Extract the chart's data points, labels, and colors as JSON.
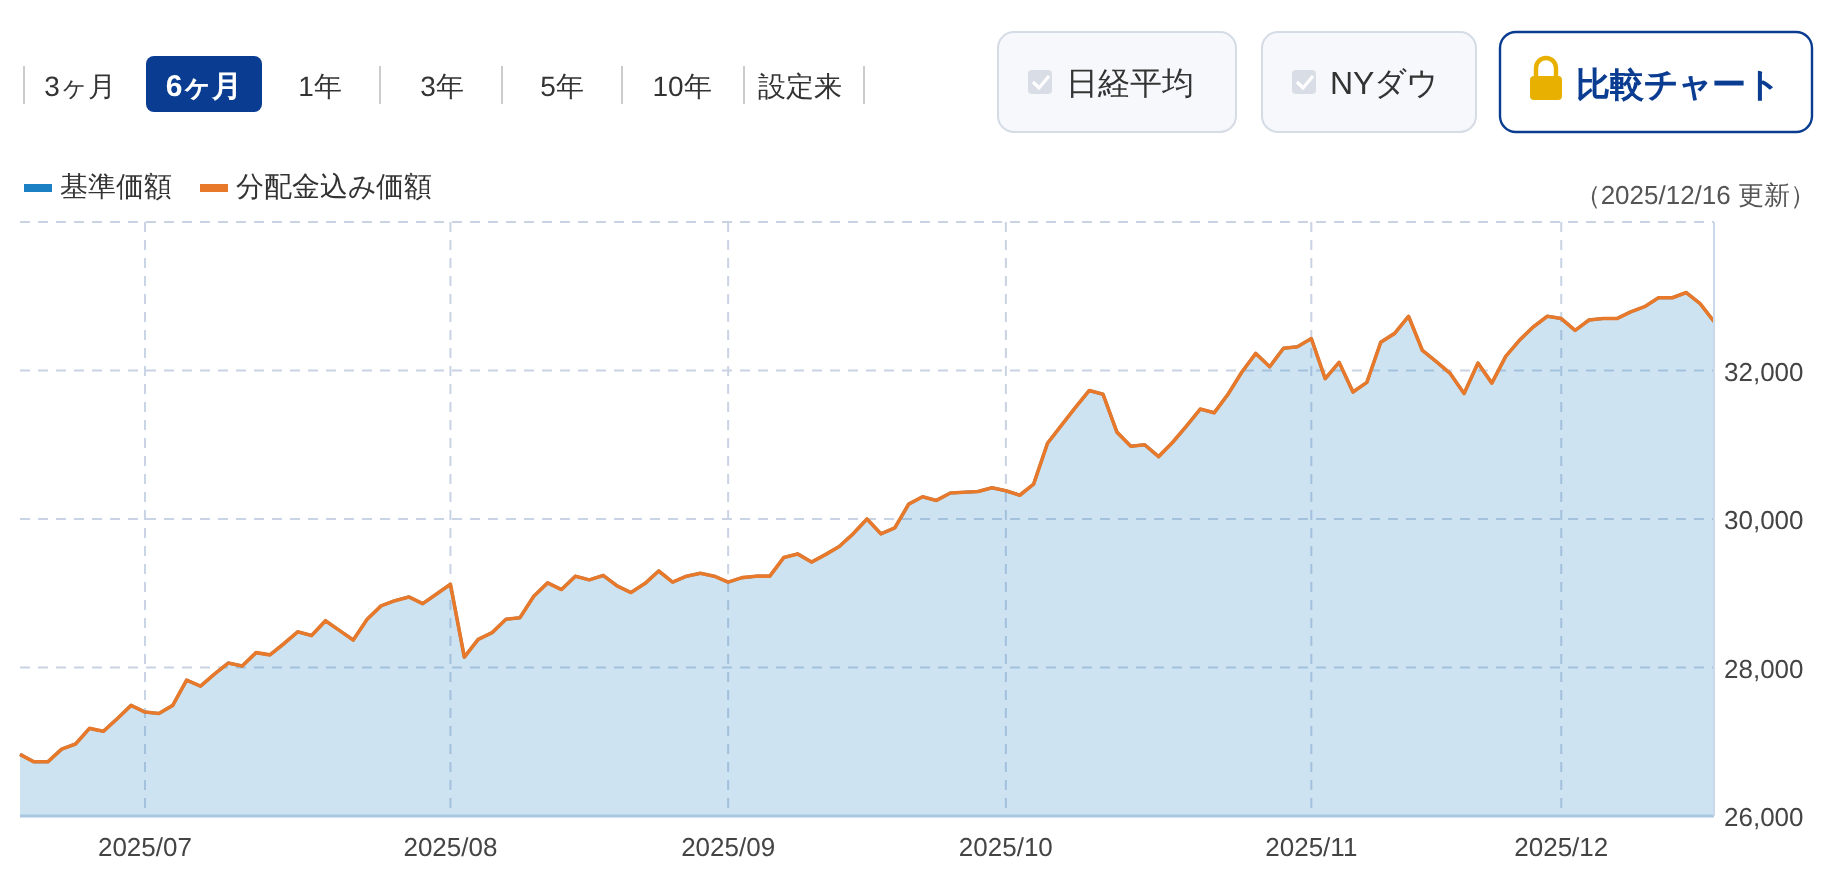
{
  "chart_data": {
    "type": "area",
    "categories": [
      null,
      null,
      null,
      null,
      null,
      null,
      null,
      null,
      null,
      "2025/07",
      null,
      null,
      null,
      null,
      null,
      null,
      null,
      null,
      null,
      null,
      null,
      null,
      null,
      null,
      null,
      null,
      null,
      null,
      null,
      null,
      null,
      "2025/08",
      null,
      null,
      null,
      null,
      null,
      null,
      null,
      null,
      null,
      null,
      null,
      null,
      null,
      null,
      null,
      null,
      null,
      null,
      null,
      "2025/09",
      null,
      null,
      null,
      null,
      null,
      null,
      null,
      null,
      null,
      null,
      null,
      null,
      null,
      null,
      null,
      null,
      null,
      null,
      null,
      "2025/10",
      null,
      null,
      null,
      null,
      null,
      null,
      null,
      null,
      null,
      null,
      null,
      null,
      null,
      null,
      null,
      null,
      null,
      null,
      null,
      null,
      null,
      "2025/11",
      null,
      null,
      null,
      null,
      null,
      null,
      null,
      null,
      null,
      null,
      null,
      null,
      null,
      null,
      null,
      null,
      null,
      "2025/12",
      null,
      null,
      null,
      null,
      null,
      null,
      null,
      null,
      null,
      null,
      null
    ],
    "series": [
      {
        "name": "基準価額",
        "color": "#1b80c4",
        "values": [
          26830,
          26730,
          26730,
          26900,
          26970,
          27180,
          27140,
          27310,
          27490,
          27400,
          27380,
          27490,
          27830,
          27750,
          27910,
          28060,
          28020,
          28200,
          28170,
          28320,
          28480,
          28430,
          28630,
          28500,
          28370,
          28650,
          28830,
          28900,
          28950,
          28860,
          28990,
          29120,
          28140,
          28380,
          28470,
          28650,
          28670,
          28960,
          29140,
          29050,
          29230,
          29180,
          29240,
          29100,
          29010,
          29130,
          29300,
          29150,
          29230,
          29270,
          29230,
          29150,
          29210,
          29230,
          29230,
          29480,
          29530,
          29420,
          29520,
          29630,
          29800,
          30000,
          29800,
          29880,
          30200,
          30300,
          30250,
          30350,
          30360,
          30370,
          30420,
          30380,
          30320,
          30470,
          31020,
          31260,
          31500,
          31730,
          31680,
          31170,
          30980,
          31000,
          30840,
          31030,
          31250,
          31480,
          31430,
          31680,
          31980,
          32230,
          32050,
          32300,
          32320,
          32430,
          31890,
          32110,
          31710,
          31840,
          32380,
          32500,
          32730,
          32270,
          32120,
          31960,
          31690,
          32100,
          31830,
          32190,
          32410,
          32590,
          32730,
          32700,
          32540,
          32680,
          32700,
          32700,
          32790,
          32860,
          32980,
          32980,
          33050,
          32900,
          32660
        ]
      },
      {
        "name": "分配金込み価額",
        "type": "line",
        "color": "#e8792a",
        "values": [
          26830,
          26730,
          26730,
          26900,
          26970,
          27180,
          27140,
          27310,
          27490,
          27400,
          27380,
          27490,
          27830,
          27750,
          27910,
          28060,
          28020,
          28200,
          28170,
          28320,
          28480,
          28430,
          28630,
          28500,
          28370,
          28650,
          28830,
          28900,
          28950,
          28860,
          28990,
          29120,
          28140,
          28380,
          28470,
          28650,
          28670,
          28960,
          29140,
          29050,
          29230,
          29180,
          29240,
          29100,
          29010,
          29130,
          29300,
          29150,
          29230,
          29270,
          29230,
          29150,
          29210,
          29230,
          29230,
          29480,
          29530,
          29420,
          29520,
          29630,
          29800,
          30000,
          29800,
          29880,
          30200,
          30300,
          30250,
          30350,
          30360,
          30370,
          30420,
          30380,
          30320,
          30470,
          31020,
          31260,
          31500,
          31730,
          31680,
          31170,
          30980,
          31000,
          30840,
          31030,
          31250,
          31480,
          31430,
          31680,
          31980,
          32230,
          32050,
          32300,
          32320,
          32430,
          31890,
          32110,
          31710,
          31840,
          32380,
          32500,
          32730,
          32270,
          32120,
          31960,
          31690,
          32100,
          31830,
          32190,
          32410,
          32590,
          32730,
          32700,
          32540,
          32680,
          32700,
          32700,
          32790,
          32860,
          32980,
          32980,
          33050,
          32900,
          32660
        ]
      }
    ],
    "ylim": [
      26000,
      34000
    ],
    "yticks": [
      {
        "value": 26000,
        "label": "26,000"
      },
      {
        "value": 28000,
        "label": "28,000"
      },
      {
        "value": 30000,
        "label": "30,000"
      },
      {
        "value": 32000,
        "label": "32,000"
      },
      {
        "value": 34000,
        "label": null
      }
    ],
    "grid": true,
    "legend": "top left",
    "annotations": [
      "3ヶ月",
      "6ヶ月",
      "1年",
      "3年",
      "5年",
      "10年",
      "設定来",
      "日経平均",
      "NYダウ",
      "比較チャート",
      "（2025/12/16 更新）"
    ]
  }
}
